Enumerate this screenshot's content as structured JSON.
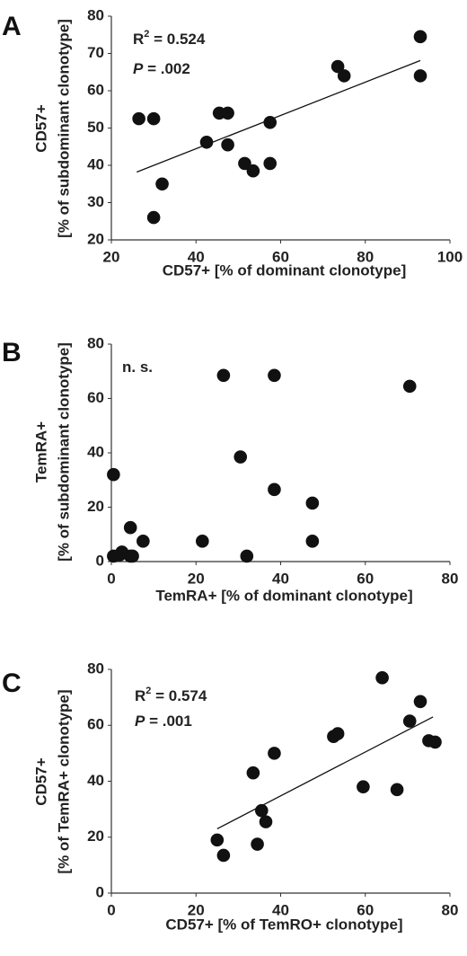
{
  "chart_data": [
    {
      "type": "scatter",
      "panel_label": "A",
      "xlabel": "CD57+ [% of dominant clonotype]",
      "ylabel_line1": "CD57+",
      "ylabel_line2": "[% of subdominant clonotype]",
      "xlim": [
        20,
        100
      ],
      "ylim": [
        20,
        80
      ],
      "xticks": [
        20,
        40,
        60,
        80,
        100
      ],
      "yticks": [
        20,
        30,
        40,
        50,
        60,
        70,
        80
      ],
      "stats": [
        {
          "label": "R",
          "sup": "2",
          "value": " = 0.524",
          "italic": false
        },
        {
          "label": "P",
          "sup": "",
          "value": " = .002",
          "italic": true
        }
      ],
      "trendline": {
        "x": [
          26,
          93
        ],
        "y": [
          38.2,
          68.1
        ]
      },
      "points": [
        {
          "x": 26.5,
          "y": 52.5
        },
        {
          "x": 30,
          "y": 52.5
        },
        {
          "x": 30,
          "y": 26
        },
        {
          "x": 32,
          "y": 35
        },
        {
          "x": 42.5,
          "y": 46.2
        },
        {
          "x": 45.5,
          "y": 54
        },
        {
          "x": 47.5,
          "y": 54
        },
        {
          "x": 47.5,
          "y": 45.5
        },
        {
          "x": 51.5,
          "y": 40.5
        },
        {
          "x": 53.5,
          "y": 38.5
        },
        {
          "x": 57.5,
          "y": 51.5
        },
        {
          "x": 57.5,
          "y": 40.5
        },
        {
          "x": 73.5,
          "y": 66.5
        },
        {
          "x": 75,
          "y": 64
        },
        {
          "x": 93,
          "y": 74.5
        },
        {
          "x": 93,
          "y": 64
        }
      ],
      "grid": false
    },
    {
      "type": "scatter",
      "panel_label": "B",
      "xlabel": "TemRA+ [% of dominant clonotype]",
      "ylabel_line1": "TemRA+",
      "ylabel_line2": "[% of subdominant clonotype]",
      "xlim": [
        0,
        80
      ],
      "ylim": [
        0,
        80
      ],
      "xticks": [
        0,
        20,
        40,
        60,
        80
      ],
      "yticks": [
        0,
        20,
        40,
        60,
        80
      ],
      "stats": [
        {
          "label": "n. s.",
          "sup": "",
          "value": "",
          "italic": false
        }
      ],
      "points": [
        {
          "x": 0.5,
          "y": 32
        },
        {
          "x": 0.5,
          "y": 2
        },
        {
          "x": 2,
          "y": 2.5
        },
        {
          "x": 2.5,
          "y": 3.5
        },
        {
          "x": 4.5,
          "y": 2
        },
        {
          "x": 4.5,
          "y": 12.5
        },
        {
          "x": 5,
          "y": 2
        },
        {
          "x": 7.5,
          "y": 7.5
        },
        {
          "x": 21.5,
          "y": 7.5
        },
        {
          "x": 26.5,
          "y": 68.5
        },
        {
          "x": 30.5,
          "y": 38.5
        },
        {
          "x": 32,
          "y": 2
        },
        {
          "x": 38.5,
          "y": 68.5
        },
        {
          "x": 38.5,
          "y": 26.5
        },
        {
          "x": 47.5,
          "y": 21.5
        },
        {
          "x": 47.5,
          "y": 7.5
        },
        {
          "x": 70.5,
          "y": 64.5
        }
      ],
      "grid": false
    },
    {
      "type": "scatter",
      "panel_label": "C",
      "xlabel": "CD57+ [% of TemRO+ clonotype]",
      "ylabel_line1": "CD57+",
      "ylabel_line2": "[% of TemRA+ clonotype]",
      "xlim": [
        0,
        80
      ],
      "ylim": [
        0,
        80
      ],
      "xticks": [
        0,
        20,
        40,
        60,
        80
      ],
      "yticks": [
        0,
        20,
        40,
        60,
        80
      ],
      "stats": [
        {
          "label": "R",
          "sup": "2",
          "value": " = 0.574",
          "italic": false
        },
        {
          "label": "P",
          "sup": "",
          "value": " = .001",
          "italic": true
        }
      ],
      "trendline": {
        "x": [
          25,
          76
        ],
        "y": [
          23,
          63
        ]
      },
      "points": [
        {
          "x": 25,
          "y": 19
        },
        {
          "x": 26.5,
          "y": 13.5
        },
        {
          "x": 33.5,
          "y": 43
        },
        {
          "x": 34.5,
          "y": 17.5
        },
        {
          "x": 35.5,
          "y": 29.5
        },
        {
          "x": 36.5,
          "y": 25.5
        },
        {
          "x": 38.5,
          "y": 50
        },
        {
          "x": 52.5,
          "y": 56
        },
        {
          "x": 53.5,
          "y": 57
        },
        {
          "x": 59.5,
          "y": 38
        },
        {
          "x": 64,
          "y": 77
        },
        {
          "x": 67.5,
          "y": 37
        },
        {
          "x": 70.5,
          "y": 61.5
        },
        {
          "x": 73,
          "y": 68.5
        },
        {
          "x": 75,
          "y": 54.5
        },
        {
          "x": 76.5,
          "y": 54
        }
      ],
      "grid": false
    }
  ]
}
